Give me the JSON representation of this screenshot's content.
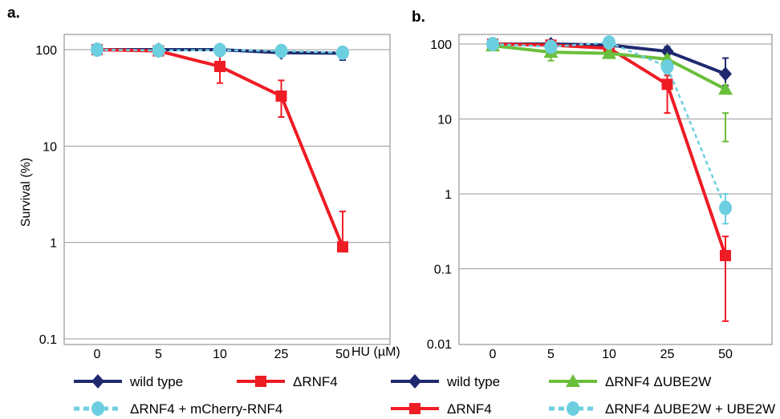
{
  "chart_data": [
    {
      "panel": "a.",
      "type": "line",
      "ylabel": "Survival (%)",
      "xlabel": "HU (µM)",
      "yscale": "log",
      "ylim": [
        0.1,
        100
      ],
      "yticks": [
        "100",
        "10",
        "1",
        "0.1"
      ],
      "categories": [
        "0",
        "5",
        "10",
        "25",
        "50"
      ],
      "grid": true,
      "legend": "bottom",
      "series": [
        {
          "name": "wild type",
          "color": "#1f2a6e",
          "marker": "diamond",
          "dash": false,
          "values": [
            100,
            100,
            100,
            93,
            92
          ],
          "err_low": [
            88,
            93,
            90,
            85,
            78
          ],
          "err_high": [
            112,
            108,
            113,
            102,
            105
          ]
        },
        {
          "name": "ΔRNF4",
          "color": "#ee1c24",
          "marker": "square",
          "dash": false,
          "values": [
            100,
            97,
            67,
            33,
            0.9
          ],
          "err_low": [
            95,
            90,
            45,
            20,
            0.9
          ],
          "err_high": [
            105,
            104,
            90,
            48,
            2.1
          ]
        },
        {
          "name": "ΔRNF4 + mCherry-RNF4",
          "color": "#6ccfe0",
          "marker": "circle",
          "dash": true,
          "values": [
            100,
            98,
            99,
            97,
            93
          ],
          "err_low": [
            90,
            92,
            88,
            90,
            82
          ],
          "err_high": [
            110,
            104,
            110,
            104,
            102
          ]
        }
      ]
    },
    {
      "panel": "b.",
      "type": "line",
      "ylabel": "",
      "xlabel": "",
      "yscale": "log",
      "ylim": [
        0.01,
        100
      ],
      "yticks": [
        "100",
        "10",
        "1",
        "0.1",
        "0.01"
      ],
      "categories": [
        "0",
        "5",
        "10",
        "25",
        "50"
      ],
      "grid": true,
      "legend": "bottom",
      "series": [
        {
          "name": "wild type",
          "color": "#1f2a6e",
          "marker": "diamond",
          "dash": false,
          "values": [
            100,
            100,
            97,
            80,
            40
          ],
          "err_low": [
            90,
            92,
            88,
            70,
            28
          ],
          "err_high": [
            110,
            108,
            106,
            92,
            65
          ]
        },
        {
          "name": "ΔRNF4",
          "color": "#ee1c24",
          "marker": "square",
          "dash": false,
          "values": [
            100,
            97,
            88,
            29,
            0.15
          ],
          "err_low": [
            93,
            90,
            80,
            12,
            0.02
          ],
          "err_high": [
            107,
            104,
            96,
            38,
            0.27
          ]
        },
        {
          "name": "ΔRNF4 ΔUBE2W",
          "color": "#6abf3b",
          "marker": "triangle",
          "dash": false,
          "values": [
            95,
            78,
            75,
            63,
            25
          ],
          "err_low": [
            88,
            60,
            68,
            56,
            5
          ],
          "err_high": [
            102,
            95,
            82,
            70,
            12
          ]
        },
        {
          "name": "ΔRNF4 ΔUBE2W + UBE2W",
          "color": "#6ccfe0",
          "marker": "circle",
          "dash": true,
          "values": [
            100,
            92,
            105,
            50,
            0.65
          ],
          "err_low": [
            90,
            85,
            95,
            40,
            0.4
          ],
          "err_high": [
            110,
            100,
            112,
            60,
            1.0
          ]
        }
      ]
    }
  ],
  "legend_a": [
    {
      "label": "wild type",
      "series": 0
    },
    {
      "label": "ΔRNF4",
      "series": 1
    },
    {
      "label": "ΔRNF4 + mCherry-RNF4",
      "series": 2
    }
  ],
  "legend_b": [
    {
      "label": "wild type",
      "series": 0
    },
    {
      "label": "ΔRNF4 ΔUBE2W",
      "series": 2
    },
    {
      "label": "ΔRNF4",
      "series": 1
    },
    {
      "label": "ΔRNF4 ΔUBE2W + UBE2W",
      "series": 3
    }
  ]
}
